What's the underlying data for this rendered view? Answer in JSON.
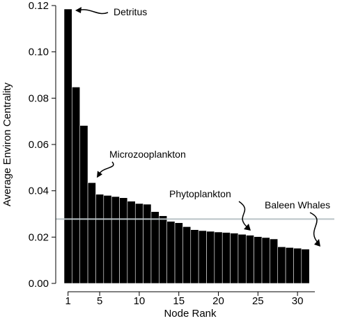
{
  "chart_data": {
    "type": "bar",
    "xlabel": "Node Rank",
    "ylabel": "Average Environ Centrality",
    "ylim": [
      0,
      0.12
    ],
    "yticks": [
      "0.00",
      "0.02",
      "0.04",
      "0.06",
      "0.08",
      "0.10",
      "0.12"
    ],
    "yticks_values": [
      0,
      0.02,
      0.04,
      0.06,
      0.08,
      0.1,
      0.12
    ],
    "xticks": [
      "1",
      "5",
      "10",
      "15",
      "20",
      "25",
      "30"
    ],
    "xticks_values": [
      1,
      5,
      10,
      15,
      20,
      25,
      30
    ],
    "categories": [
      1,
      2,
      3,
      4,
      5,
      6,
      7,
      8,
      9,
      10,
      11,
      12,
      13,
      14,
      15,
      16,
      17,
      18,
      19,
      20,
      21,
      22,
      23,
      24,
      25,
      26,
      27,
      28,
      29,
      30,
      31
    ],
    "values": [
      0.1185,
      0.0848,
      0.0682,
      0.0435,
      0.0385,
      0.038,
      0.0375,
      0.037,
      0.0355,
      0.0345,
      0.0342,
      0.031,
      0.0292,
      0.0268,
      0.0262,
      0.0245,
      0.0232,
      0.0228,
      0.0225,
      0.0222,
      0.022,
      0.0217,
      0.0212,
      0.0208,
      0.0202,
      0.0198,
      0.0192,
      0.0158,
      0.0155,
      0.0152,
      0.0148
    ],
    "reference_line": 0.0278,
    "reference_line_color": "#b9c3c6",
    "bar_color": "#000000",
    "grid": false,
    "annotations": [
      {
        "text": "Detritus",
        "rank": 1
      },
      {
        "text": "Microzooplankton",
        "rank": 4
      },
      {
        "text": "Phytoplankton",
        "rank": 23
      },
      {
        "text": "Baleen Whales",
        "rank": 31
      }
    ]
  }
}
